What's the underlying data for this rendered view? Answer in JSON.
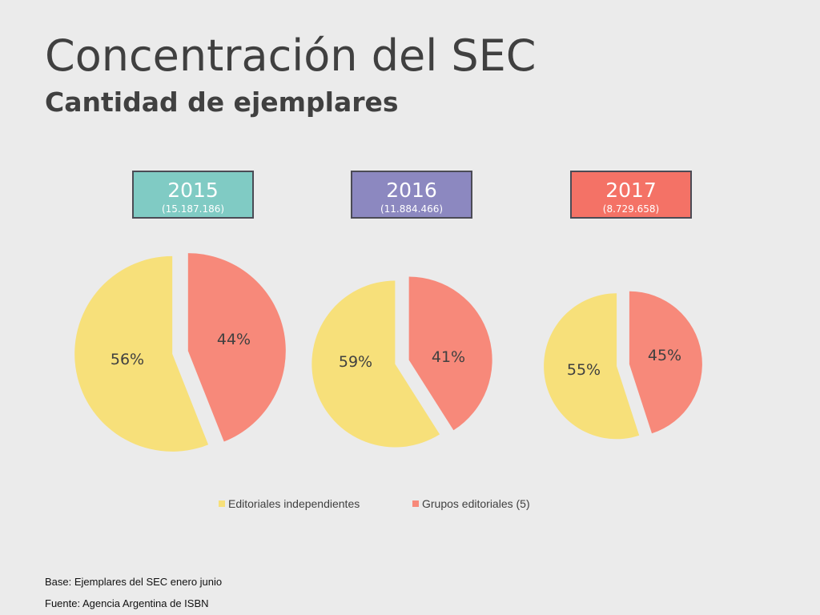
{
  "title": "Concentración del SEC",
  "subtitle": "Cantidad de ejemplares",
  "chart_data": [
    {
      "type": "pie",
      "header": "2015",
      "total": "(15.187.186)",
      "header_color": "#80cbc4",
      "categories": [
        "Editoriales independientes",
        "Grupos editoriales (5)"
      ],
      "values": [
        56,
        44
      ],
      "labels": [
        "56%",
        "44%"
      ]
    },
    {
      "type": "pie",
      "header": "2016",
      "total": "(11.884.466)",
      "header_color": "#8c88c0",
      "categories": [
        "Editoriales independientes",
        "Grupos editoriales (5)"
      ],
      "values": [
        59,
        41
      ],
      "labels": [
        "59%",
        "41%"
      ]
    },
    {
      "type": "pie",
      "header": "2017",
      "total": "(8.729.658)",
      "header_color": "#f47266",
      "categories": [
        "Editoriales independientes",
        "Grupos editoriales (5)"
      ],
      "values": [
        55,
        45
      ],
      "labels": [
        "55%",
        "45%"
      ]
    }
  ],
  "legend": {
    "placement": "bottom-center",
    "items": [
      {
        "label": "Editoriales independientes",
        "color": "#f7e07a"
      },
      {
        "label": "Grupos editoriales (5)",
        "color": "#f7897a"
      }
    ]
  },
  "footnotes": {
    "base": "Base: Ejemplares del SEC enero junio",
    "source": "Fuente:  Agencia Argentina de ISBN"
  }
}
